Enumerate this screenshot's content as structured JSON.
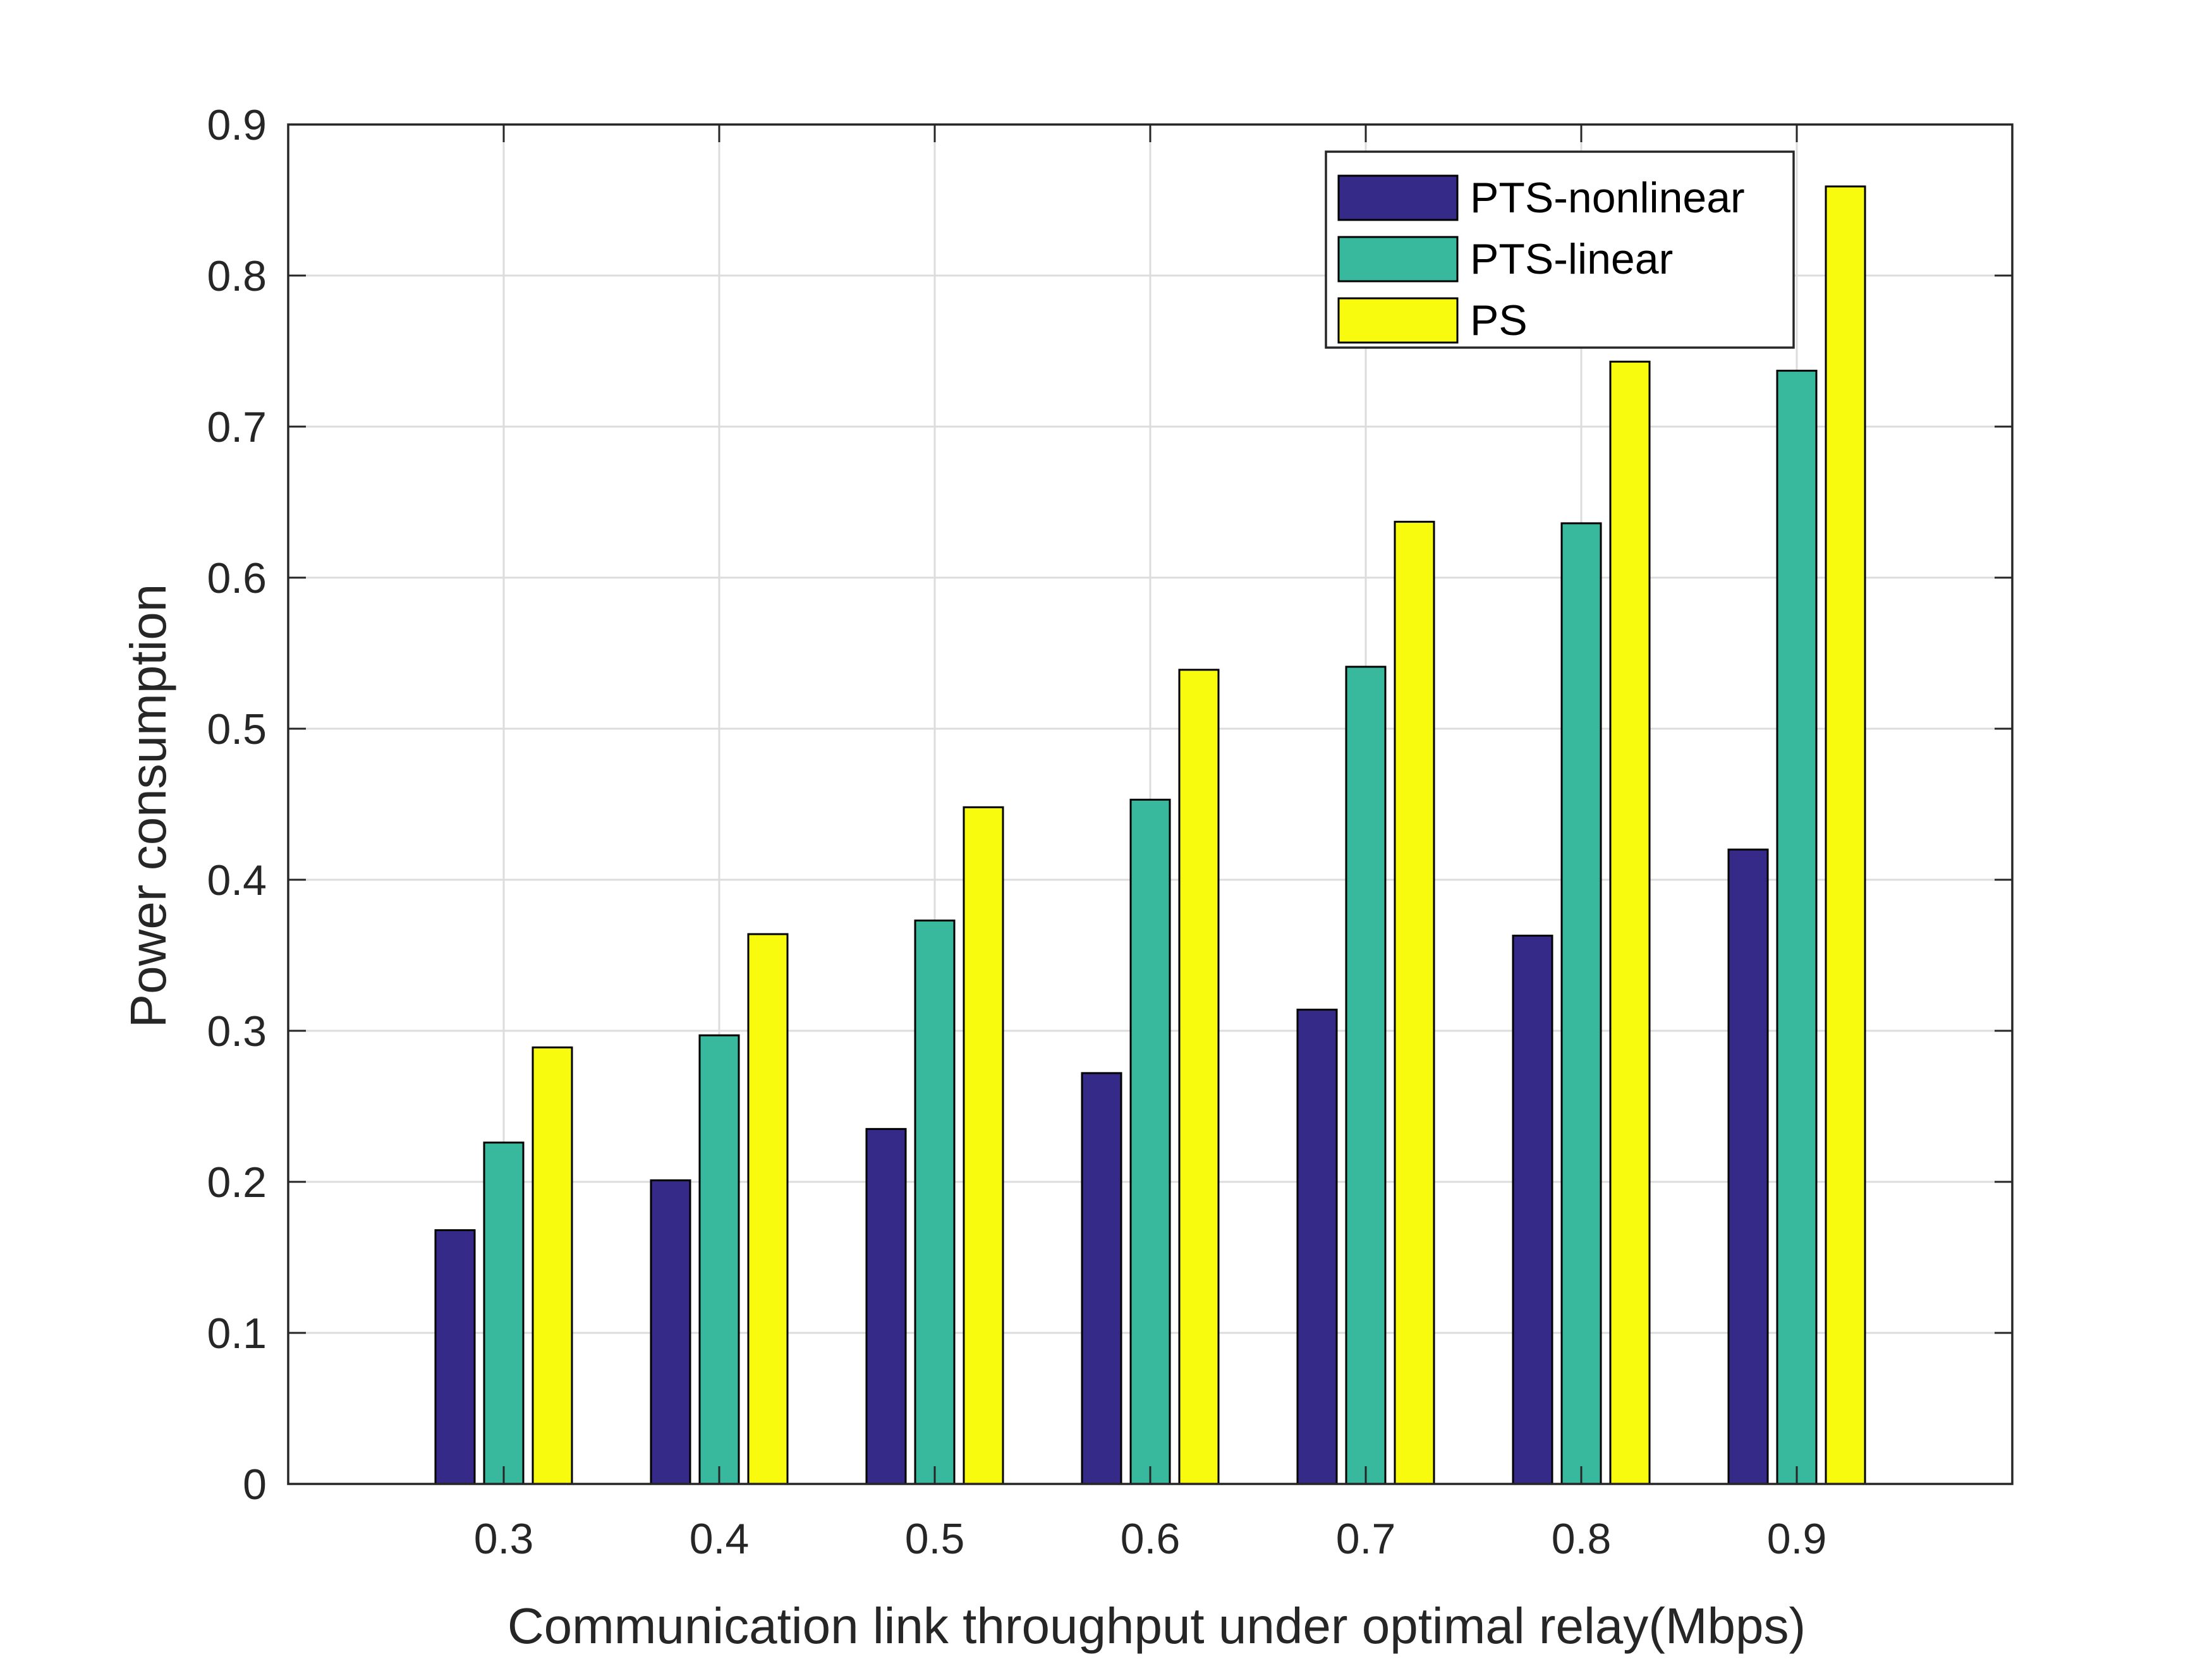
{
  "chart_data": {
    "type": "bar",
    "title": "",
    "xlabel": "Communication link throughput under optimal relay(Mbps)",
    "ylabel": "Power consumption",
    "categories": [
      "0.3",
      "0.4",
      "0.5",
      "0.6",
      "0.7",
      "0.8",
      "0.9"
    ],
    "x_ticks": [
      "0.3",
      "0.4",
      "0.5",
      "0.6",
      "0.7",
      "0.8",
      "0.9"
    ],
    "xlim": [
      0.2,
      1.0
    ],
    "ylim": [
      0,
      0.9
    ],
    "y_ticks": [
      "0",
      "0.1",
      "0.2",
      "0.3",
      "0.4",
      "0.5",
      "0.6",
      "0.7",
      "0.8",
      "0.9"
    ],
    "grid": true,
    "legend_position": "top-right",
    "series": [
      {
        "name": "PTS-nonlinear",
        "color": "#352a87",
        "values": [
          0.168,
          0.201,
          0.235,
          0.272,
          0.314,
          0.363,
          0.42
        ]
      },
      {
        "name": "PTS-linear",
        "color": "#38b99e",
        "values": [
          0.226,
          0.297,
          0.373,
          0.453,
          0.541,
          0.636,
          0.737
        ]
      },
      {
        "name": "PS",
        "color": "#f9fb0e",
        "values": [
          0.289,
          0.364,
          0.448,
          0.539,
          0.637,
          0.743,
          0.859
        ]
      }
    ]
  }
}
